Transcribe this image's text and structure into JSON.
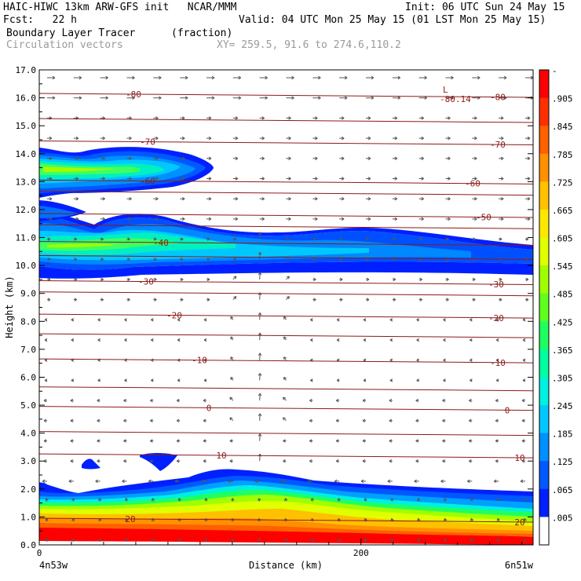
{
  "header": {
    "title_left": "HAIC-HIWC 13km ARW-GFS init   NCAR/MMM",
    "init": "Init: 06 UTC Sun 24 May 15",
    "fcst": "Fcst:   22 h",
    "valid": "Valid: 04 UTC Mon 25 May 15 (01 LST Mon 25 May 15)",
    "field1": "Boundary Layer Tracer",
    "field1_units": "(fraction)",
    "field2": "Circulation vectors",
    "xy": "XY= 259.5, 91.6 to 274.6,110.2"
  },
  "chart_data": {
    "type": "heatmap",
    "xlabel": "Distance (km)",
    "ylabel": "Height (km)",
    "xlim": [
      0,
      307
    ],
    "ylim": [
      0,
      17
    ],
    "x_ticks": [
      "0",
      "200"
    ],
    "x_tick_values": [
      0,
      200
    ],
    "x_end_labels": [
      "4n53w",
      "6n51w"
    ],
    "y_ticks": [
      "0.0",
      "1.0",
      "2.0",
      "3.0",
      "4.0",
      "5.0",
      "6.0",
      "7.0",
      "8.0",
      "9.0",
      "10.0",
      "11.0",
      "12.0",
      "13.0",
      "14.0",
      "15.0",
      "16.0",
      "17.0"
    ],
    "colorbar": {
      "labels": [
        "-",
        ".905",
        ".845",
        ".785",
        ".725",
        ".665",
        ".605",
        ".545",
        ".485",
        ".425",
        ".365",
        ".305",
        ".245",
        ".185",
        ".125",
        ".065",
        ".005"
      ],
      "colors": [
        "#ff0000",
        "#ff3000",
        "#ff6000",
        "#ff9000",
        "#ffc000",
        "#ffe800",
        "#e0ff00",
        "#a0ff00",
        "#60ff20",
        "#20ff60",
        "#00ffa0",
        "#00f0e0",
        "#00c8ff",
        "#0090ff",
        "#0058ff",
        "#0020ff",
        "#ffffff"
      ]
    },
    "plume_levels": [
      {
        "ymin": 9.6,
        "ymax": 11.7,
        "extent": "full width"
      },
      {
        "ymin": 12.4,
        "ymax": 14.2,
        "extent": "0-110 km"
      },
      {
        "ymin": 0,
        "ymax": 2.7,
        "extent": "full width"
      }
    ],
    "temperature_contours": [
      {
        "label": "-80",
        "height": 16.1
      },
      {
        "label": "-70",
        "height": 14.4
      },
      {
        "label": "-60",
        "height": 13.0
      },
      {
        "label": "-50",
        "height": 11.8
      },
      {
        "label": "-40",
        "height": 10.8
      },
      {
        "label": "-30",
        "height": 9.4
      },
      {
        "label": "-20",
        "height": 8.2
      },
      {
        "label": "-10",
        "height": 6.6
      },
      {
        "label": "0",
        "height": 4.9
      },
      {
        "label": "10",
        "height": 3.2
      },
      {
        "label": "20",
        "height": 0.9
      }
    ],
    "minimum_label": "L",
    "minimum_value": "-80.14"
  }
}
